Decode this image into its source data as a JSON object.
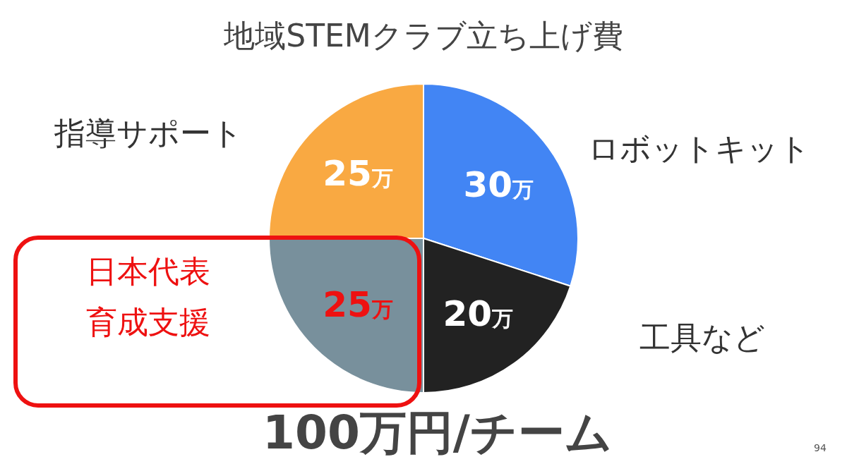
{
  "chart_data": {
    "type": "pie",
    "title": "地域STEMクラブ立ち上げ費",
    "categories": [
      "ロボットキット",
      "工具など",
      "日本代表育成支援",
      "指導サポート"
    ],
    "values": [
      30,
      20,
      25,
      25
    ],
    "colors": [
      "#4285f4",
      "#222222",
      "#78909c",
      "#f9a942"
    ],
    "value_labels": [
      "30万",
      "20万",
      "25万",
      "25万"
    ],
    "annotations": [
      "100万円/チーム",
      "94"
    ]
  }
}
